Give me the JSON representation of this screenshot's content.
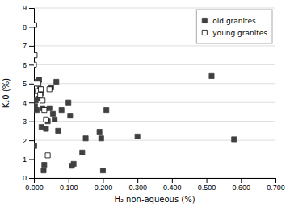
{
  "chart_data": {
    "type": "scatter",
    "xlabel": "H₂ non-aqueous (%)",
    "ylabel": "K₂0 (%)",
    "xlim": [
      0,
      0.7
    ],
    "ylim": [
      0,
      9
    ],
    "xticks": [
      {
        "value": 0.0,
        "label": "0.000"
      },
      {
        "value": 0.1,
        "label": "0.100"
      },
      {
        "value": 0.2,
        "label": "0.200"
      },
      {
        "value": 0.3,
        "label": "0.300"
      },
      {
        "value": 0.4,
        "label": "0.400"
      },
      {
        "value": 0.5,
        "label": "0.500"
      },
      {
        "value": 0.6,
        "label": "0.600"
      },
      {
        "value": 0.7,
        "label": "0.700"
      }
    ],
    "yticks": [
      0,
      1,
      2,
      3,
      4,
      5,
      6,
      7,
      8,
      9
    ],
    "grid": "y",
    "legend": "upper right",
    "series": [
      {
        "name": "old granites",
        "color": "#404040",
        "marker": "square",
        "x": [
          0.001,
          0.003,
          0.005,
          0.008,
          0.01,
          0.012,
          0.015,
          0.018,
          0.02,
          0.022,
          0.025,
          0.028,
          0.03,
          0.035,
          0.04,
          0.045,
          0.05,
          0.055,
          0.06,
          0.065,
          0.07,
          0.08,
          0.1,
          0.105,
          0.11,
          0.115,
          0.14,
          0.15,
          0.19,
          0.195,
          0.2,
          0.21,
          0.3,
          0.515,
          0.58
        ],
        "values": [
          1.7,
          3.8,
          4.1,
          3.6,
          5.1,
          4.2,
          5.2,
          4.7,
          4.5,
          2.7,
          3.7,
          0.4,
          0.7,
          2.6,
          3.0,
          3.7,
          4.8,
          3.4,
          3.1,
          5.1,
          2.5,
          3.6,
          4.0,
          3.3,
          0.65,
          0.75,
          1.35,
          2.1,
          2.45,
          2.1,
          0.4,
          3.6,
          2.2,
          5.4,
          2.05
        ]
      },
      {
        "name": "young granites",
        "color": "white",
        "marker": "square",
        "x": [
          0.0,
          0.001,
          0.002,
          0.003,
          0.01,
          0.013,
          0.018,
          0.02,
          0.025,
          0.03,
          0.035,
          0.04,
          0.045
        ],
        "values": [
          6.0,
          8.1,
          6.5,
          5.0,
          4.6,
          5.0,
          4.4,
          4.7,
          4.1,
          3.6,
          3.1,
          1.2,
          4.7
        ]
      }
    ]
  }
}
